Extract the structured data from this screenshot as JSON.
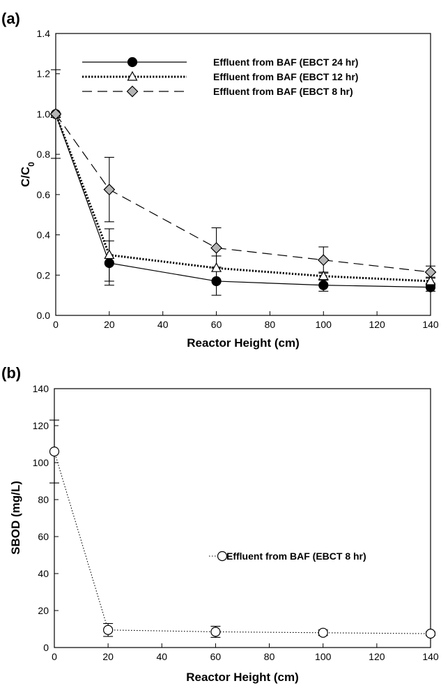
{
  "chart_data": [
    {
      "type": "line",
      "panel_label": "(a)",
      "xlabel": "Reactor Height (cm)",
      "ylabel": "C/C0",
      "ylabel_main": "C/C",
      "ylabel_sub": "0",
      "xlim": [
        0,
        140
      ],
      "ylim": [
        0,
        1.4
      ],
      "xticks": [
        "0",
        "20",
        "40",
        "60",
        "80",
        "100",
        "120",
        "140"
      ],
      "yticks": [
        "0.0",
        "0.2",
        "0.4",
        "0.6",
        "0.8",
        "1.0",
        "1.2",
        "1.4"
      ],
      "grid": false,
      "legend_position": "top-right",
      "x": [
        0,
        20,
        60,
        100,
        140
      ],
      "series": [
        {
          "name": "Effluent from BAF (EBCT 24 hr)",
          "values": [
            1.0,
            0.26,
            0.17,
            0.15,
            0.14
          ],
          "errors": [
            0.22,
            0.11,
            0.07,
            0.03,
            0.02
          ],
          "line": "solid",
          "marker": "circle",
          "marker_fill": "#000000"
        },
        {
          "name": "Effluent from BAF (EBCT 12 hr)",
          "values": [
            1.0,
            0.3,
            0.235,
            0.195,
            0.17
          ],
          "errors": [
            0,
            0.13,
            0.06,
            0.02,
            0.02
          ],
          "line": "dotted",
          "marker": "triangle",
          "marker_fill": "#ffffff"
        },
        {
          "name": "Effluent from BAF (EBCT 8 hr)",
          "values": [
            1.0,
            0.625,
            0.335,
            0.275,
            0.215
          ],
          "errors": [
            0,
            0.16,
            0.1,
            0.065,
            0.03
          ],
          "line": "dashed",
          "marker": "diamond",
          "marker_fill": "#b4b4b4"
        }
      ]
    },
    {
      "type": "line",
      "panel_label": "(b)",
      "xlabel": "Reactor Height (cm)",
      "ylabel": "SBOD (mg/L)",
      "xlim": [
        0,
        140
      ],
      "ylim": [
        0,
        140
      ],
      "xticks": [
        "0",
        "20",
        "40",
        "60",
        "80",
        "100",
        "120",
        "140"
      ],
      "yticks": [
        "0",
        "20",
        "40",
        "60",
        "80",
        "100",
        "120",
        "140"
      ],
      "grid": false,
      "legend_position": "center-right",
      "x": [
        0,
        20,
        60,
        100,
        140
      ],
      "series": [
        {
          "name": "Effluent from BAF (EBCT 8 hr)",
          "values": [
            106,
            9.5,
            8.5,
            8.0,
            7.5
          ],
          "errors": [
            17,
            3.5,
            3,
            1.5,
            1
          ],
          "line": "dotted",
          "marker": "circle",
          "marker_fill": "#ffffff"
        }
      ]
    }
  ]
}
